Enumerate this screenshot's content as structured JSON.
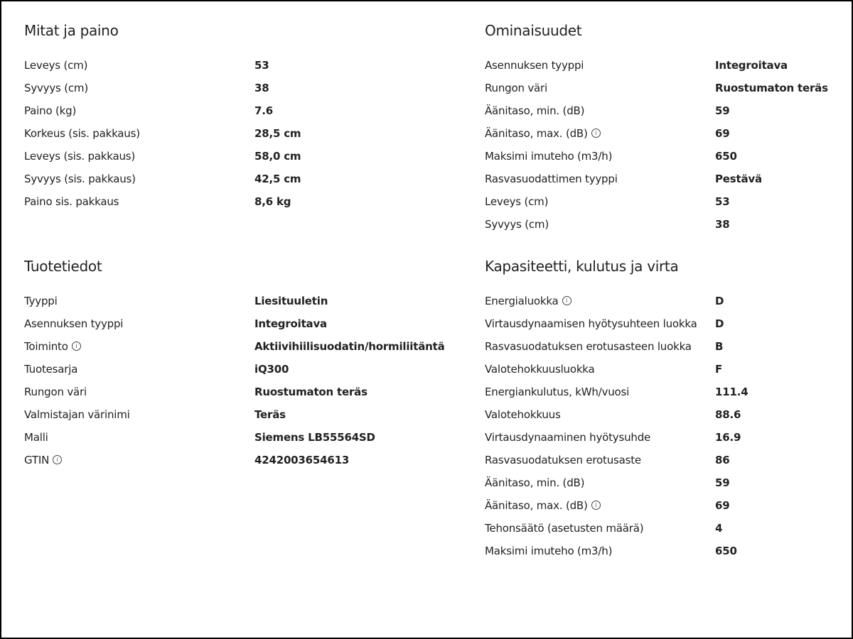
{
  "sections": [
    {
      "title": "Mitat ja paino",
      "rows": [
        {
          "label": "Leveys (cm)",
          "value": "53"
        },
        {
          "label": "Syvyys (cm)",
          "value": "38"
        },
        {
          "label": "Paino (kg)",
          "value": "7.6"
        },
        {
          "label": "Korkeus (sis. pakkaus)",
          "value": "28,5 cm"
        },
        {
          "label": "Leveys (sis. pakkaus)",
          "value": "58,0 cm"
        },
        {
          "label": "Syvyys (sis. pakkaus)",
          "value": "42,5 cm"
        },
        {
          "label": "Paino sis. pakkaus",
          "value": "8,6 kg"
        }
      ]
    },
    {
      "title": "Ominaisuudet",
      "rows": [
        {
          "label": "Asennuksen tyyppi",
          "value": "Integroitava"
        },
        {
          "label": "Rungon väri",
          "value": "Ruostumaton teräs"
        },
        {
          "label": "Äänitaso, min. (dB)",
          "value": "59"
        },
        {
          "label": "Äänitaso, max. (dB)",
          "value": "69",
          "info": true
        },
        {
          "label": "Maksimi imuteho (m3/h)",
          "value": "650"
        },
        {
          "label": "Rasvasuodattimen tyyppi",
          "value": "Pestävä"
        },
        {
          "label": "Leveys (cm)",
          "value": "53"
        },
        {
          "label": "Syvyys (cm)",
          "value": "38"
        }
      ]
    },
    {
      "title": "Tuotetiedot",
      "rows": [
        {
          "label": "Tyyppi",
          "value": "Liesituuletin"
        },
        {
          "label": "Asennuksen tyyppi",
          "value": "Integroitava"
        },
        {
          "label": "Toiminto",
          "value": "Aktiivihiilisuodatin/hormiliitäntä",
          "info": true
        },
        {
          "label": "Tuotesarja",
          "value": "iQ300"
        },
        {
          "label": "Rungon väri",
          "value": "Ruostumaton teräs"
        },
        {
          "label": "Valmistajan värinimi",
          "value": "Teräs"
        },
        {
          "label": "Malli",
          "value": "Siemens LB55564SD"
        },
        {
          "label": "GTIN",
          "value": "4242003654613",
          "info": true
        }
      ]
    },
    {
      "title": "Kapasiteetti, kulutus ja virta",
      "rows": [
        {
          "label": "Energialuokka",
          "value": "D",
          "info": true
        },
        {
          "label": "Virtausdynaamisen hyötysuhteen luokka",
          "value": "D"
        },
        {
          "label": "Rasvasuodatuksen erotusasteen luokka",
          "value": "B"
        },
        {
          "label": "Valotehokkuusluokka",
          "value": "F"
        },
        {
          "label": "Energiankulutus, kWh/vuosi",
          "value": "111.4"
        },
        {
          "label": "Valotehokkuus",
          "value": "88.6"
        },
        {
          "label": "Virtausdynaaminen hyötysuhde",
          "value": "16.9"
        },
        {
          "label": "Rasvasuodatuksen erotusaste",
          "value": "86"
        },
        {
          "label": "Äänitaso, min. (dB)",
          "value": "59"
        },
        {
          "label": "Äänitaso, max. (dB)",
          "value": "69",
          "info": true
        },
        {
          "label": "Tehonsäätö (asetusten määrä)",
          "value": "4"
        },
        {
          "label": "Maksimi imuteho (m3/h)",
          "value": "650"
        }
      ]
    }
  ],
  "info_icon_glyph": "i"
}
